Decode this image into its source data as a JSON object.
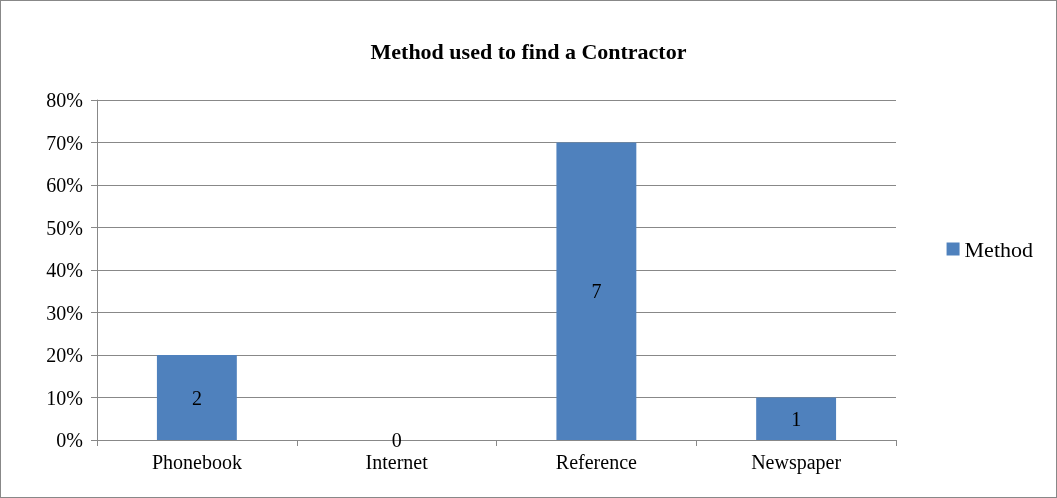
{
  "chart_data": {
    "type": "bar",
    "title": "Method used to find a Contractor",
    "categories": [
      "Phonebook",
      "Internet",
      "Reference",
      "Newspaper"
    ],
    "series": [
      {
        "name": "Method",
        "color": "#4f81bd",
        "values": [
          20,
          0,
          70,
          10
        ]
      }
    ],
    "annotations": [
      "2",
      "0",
      "7",
      "1"
    ],
    "ylim": [
      0,
      80
    ],
    "yticks": [
      {
        "value": 0,
        "label": "0%"
      },
      {
        "value": 10,
        "label": "10%"
      },
      {
        "value": 20,
        "label": "20%"
      },
      {
        "value": 30,
        "label": "30%"
      },
      {
        "value": 40,
        "label": "40%"
      },
      {
        "value": 50,
        "label": "50%"
      },
      {
        "value": 60,
        "label": "60%"
      },
      {
        "value": 70,
        "label": "70%"
      },
      {
        "value": 80,
        "label": "80%"
      }
    ],
    "grid": "y",
    "legend": "right"
  }
}
